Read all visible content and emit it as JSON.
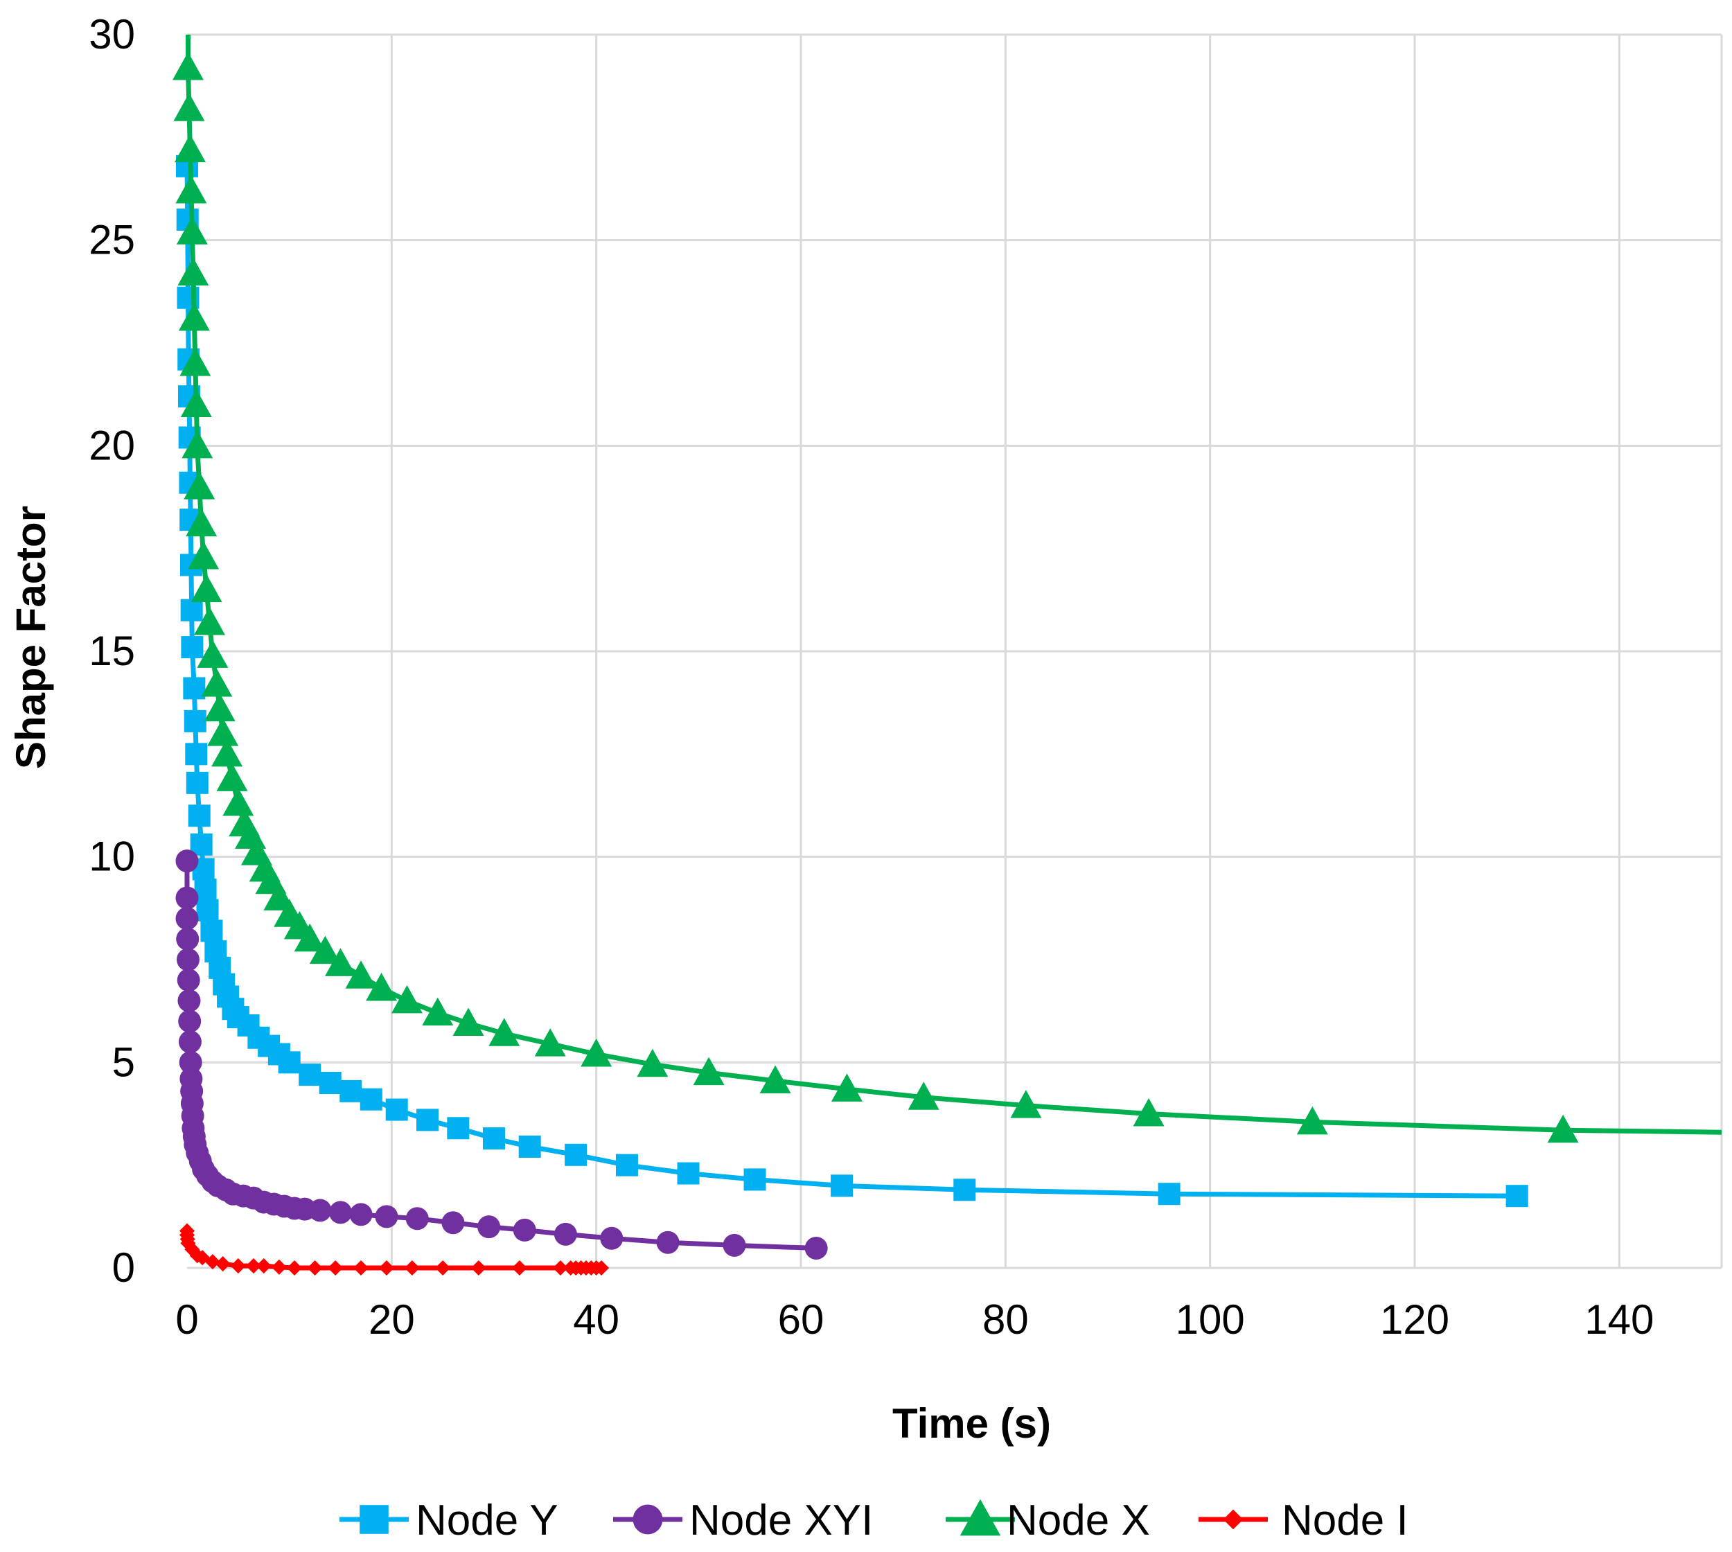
{
  "chart_data": {
    "type": "line",
    "title": "",
    "xlabel": "Time (s)",
    "ylabel": "Shape Factor",
    "xlim": [
      0,
      150
    ],
    "ylim": [
      0,
      30
    ],
    "xticks": [
      0,
      20,
      40,
      60,
      80,
      100,
      120,
      140
    ],
    "yticks": [
      0,
      5,
      10,
      15,
      20,
      25,
      30
    ],
    "grid": true,
    "legend_position": "bottom",
    "series": [
      {
        "name": "Node Y",
        "color": "#00b0f0",
        "marker": "square",
        "points": [
          [
            0.0,
            26.8
          ],
          [
            0.05,
            25.5
          ],
          [
            0.1,
            23.6
          ],
          [
            0.15,
            22.1
          ],
          [
            0.2,
            21.2
          ],
          [
            0.25,
            20.2
          ],
          [
            0.3,
            19.1
          ],
          [
            0.35,
            18.2
          ],
          [
            0.4,
            17.1
          ],
          [
            0.45,
            16.0
          ],
          [
            0.5,
            15.1
          ],
          [
            0.7,
            14.1
          ],
          [
            0.8,
            13.3
          ],
          [
            0.9,
            12.5
          ],
          [
            1.0,
            11.8
          ],
          [
            1.2,
            11.0
          ],
          [
            1.4,
            10.3
          ],
          [
            1.6,
            9.7
          ],
          [
            1.8,
            9.2
          ],
          [
            2.0,
            8.7
          ],
          [
            2.4,
            8.2
          ],
          [
            2.8,
            7.7
          ],
          [
            3.2,
            7.3
          ],
          [
            3.6,
            6.9
          ],
          [
            4.0,
            6.6
          ],
          [
            4.5,
            6.3
          ],
          [
            5.0,
            6.1
          ],
          [
            6.0,
            5.9
          ],
          [
            7.0,
            5.6
          ],
          [
            8.0,
            5.4
          ],
          [
            9.0,
            5.2
          ],
          [
            10.0,
            5.0
          ],
          [
            12.0,
            4.7
          ],
          [
            14.0,
            4.5
          ],
          [
            16.0,
            4.3
          ],
          [
            18.0,
            4.1
          ],
          [
            20.5,
            3.85
          ],
          [
            23.5,
            3.6
          ],
          [
            26.5,
            3.4
          ],
          [
            30.0,
            3.15
          ],
          [
            33.5,
            2.95
          ],
          [
            38.0,
            2.75
          ],
          [
            43.0,
            2.5
          ],
          [
            49.0,
            2.3
          ],
          [
            55.5,
            2.15
          ],
          [
            64.0,
            2.0
          ],
          [
            76.0,
            1.9
          ],
          [
            96.0,
            1.8
          ],
          [
            130.0,
            1.75
          ]
        ]
      },
      {
        "name": "Node XYI",
        "color": "#7030a0",
        "marker": "circle",
        "points": [
          [
            0.0,
            9.9
          ],
          [
            0.0,
            9.0
          ],
          [
            0.0,
            8.5
          ],
          [
            0.05,
            8.0
          ],
          [
            0.1,
            7.5
          ],
          [
            0.15,
            7.0
          ],
          [
            0.2,
            6.5
          ],
          [
            0.25,
            6.0
          ],
          [
            0.3,
            5.5
          ],
          [
            0.35,
            5.0
          ],
          [
            0.4,
            4.6
          ],
          [
            0.45,
            4.3
          ],
          [
            0.5,
            4.0
          ],
          [
            0.55,
            3.7
          ],
          [
            0.6,
            3.4
          ],
          [
            0.7,
            3.2
          ],
          [
            0.8,
            3.0
          ],
          [
            1.0,
            2.8
          ],
          [
            1.3,
            2.6
          ],
          [
            1.6,
            2.4
          ],
          [
            2.0,
            2.25
          ],
          [
            2.5,
            2.1
          ],
          [
            3.0,
            2.0
          ],
          [
            3.8,
            1.9
          ],
          [
            4.5,
            1.8
          ],
          [
            5.5,
            1.75
          ],
          [
            6.5,
            1.7
          ],
          [
            7.5,
            1.6
          ],
          [
            8.5,
            1.55
          ],
          [
            9.5,
            1.5
          ],
          [
            10.5,
            1.45
          ],
          [
            11.5,
            1.43
          ],
          [
            13.0,
            1.4
          ],
          [
            15.0,
            1.35
          ],
          [
            17.0,
            1.3
          ],
          [
            19.5,
            1.25
          ],
          [
            22.5,
            1.2
          ],
          [
            26.0,
            1.1
          ],
          [
            29.5,
            1.0
          ],
          [
            33.0,
            0.92
          ],
          [
            37.0,
            0.82
          ],
          [
            41.5,
            0.72
          ],
          [
            47.0,
            0.62
          ],
          [
            53.5,
            0.55
          ],
          [
            61.5,
            0.48
          ]
        ]
      },
      {
        "name": "Node X",
        "color": "#00b050",
        "marker": "triangle",
        "points": [
          [
            0.1,
            29.2
          ],
          [
            0.2,
            28.2
          ],
          [
            0.3,
            27.2
          ],
          [
            0.4,
            26.2
          ],
          [
            0.5,
            25.2
          ],
          [
            0.6,
            24.2
          ],
          [
            0.7,
            23.1
          ],
          [
            0.8,
            22.0
          ],
          [
            0.9,
            21.0
          ],
          [
            1.0,
            20.0
          ],
          [
            1.2,
            19.0
          ],
          [
            1.4,
            18.1
          ],
          [
            1.6,
            17.3
          ],
          [
            1.9,
            16.5
          ],
          [
            2.2,
            15.7
          ],
          [
            2.5,
            14.9
          ],
          [
            2.9,
            14.2
          ],
          [
            3.2,
            13.6
          ],
          [
            3.5,
            13.0
          ],
          [
            3.9,
            12.5
          ],
          [
            4.4,
            11.9
          ],
          [
            5.0,
            11.3
          ],
          [
            5.6,
            10.8
          ],
          [
            6.2,
            10.5
          ],
          [
            6.8,
            10.1
          ],
          [
            7.6,
            9.7
          ],
          [
            8.2,
            9.4
          ],
          [
            9.0,
            9.0
          ],
          [
            10.0,
            8.6
          ],
          [
            11.0,
            8.3
          ],
          [
            12.0,
            8.0
          ],
          [
            13.5,
            7.7
          ],
          [
            15.0,
            7.4
          ],
          [
            17.0,
            7.1
          ],
          [
            19.0,
            6.8
          ],
          [
            21.5,
            6.5
          ],
          [
            24.5,
            6.2
          ],
          [
            27.5,
            5.95
          ],
          [
            31.0,
            5.7
          ],
          [
            35.5,
            5.45
          ],
          [
            40.0,
            5.2
          ],
          [
            45.5,
            4.95
          ],
          [
            51.0,
            4.75
          ],
          [
            57.5,
            4.55
          ],
          [
            64.5,
            4.35
          ],
          [
            72.0,
            4.15
          ],
          [
            82.0,
            3.95
          ],
          [
            94.0,
            3.75
          ],
          [
            110.0,
            3.55
          ],
          [
            134.5,
            3.35
          ]
        ],
        "curve_end": [
          150,
          3.3
        ]
      },
      {
        "name": "Node I",
        "color": "#ff0000",
        "marker": "diamond",
        "points": [
          [
            0.0,
            0.9
          ],
          [
            0.0,
            0.8
          ],
          [
            0.05,
            0.7
          ],
          [
            0.1,
            0.6
          ],
          [
            0.5,
            0.45
          ],
          [
            1.0,
            0.3
          ],
          [
            1.5,
            0.25
          ],
          [
            2.5,
            0.15
          ],
          [
            3.5,
            0.1
          ],
          [
            5.0,
            0.05
          ],
          [
            6.5,
            0.05
          ],
          [
            7.5,
            0.05
          ],
          [
            9.0,
            0.02
          ],
          [
            10.5,
            0.0
          ],
          [
            12.5,
            0.0
          ],
          [
            14.5,
            0.0
          ],
          [
            17.0,
            0.0
          ],
          [
            19.5,
            0.0
          ],
          [
            22.0,
            0.0
          ],
          [
            25.0,
            0.0
          ],
          [
            28.5,
            0.0
          ],
          [
            32.5,
            0.0
          ],
          [
            36.5,
            0.0
          ],
          [
            37.5,
            0.0
          ],
          [
            38.0,
            0.0
          ],
          [
            38.5,
            0.0
          ],
          [
            39.0,
            0.0
          ],
          [
            39.5,
            0.0
          ],
          [
            40.0,
            0.0
          ],
          [
            40.5,
            0.0
          ]
        ]
      }
    ]
  }
}
